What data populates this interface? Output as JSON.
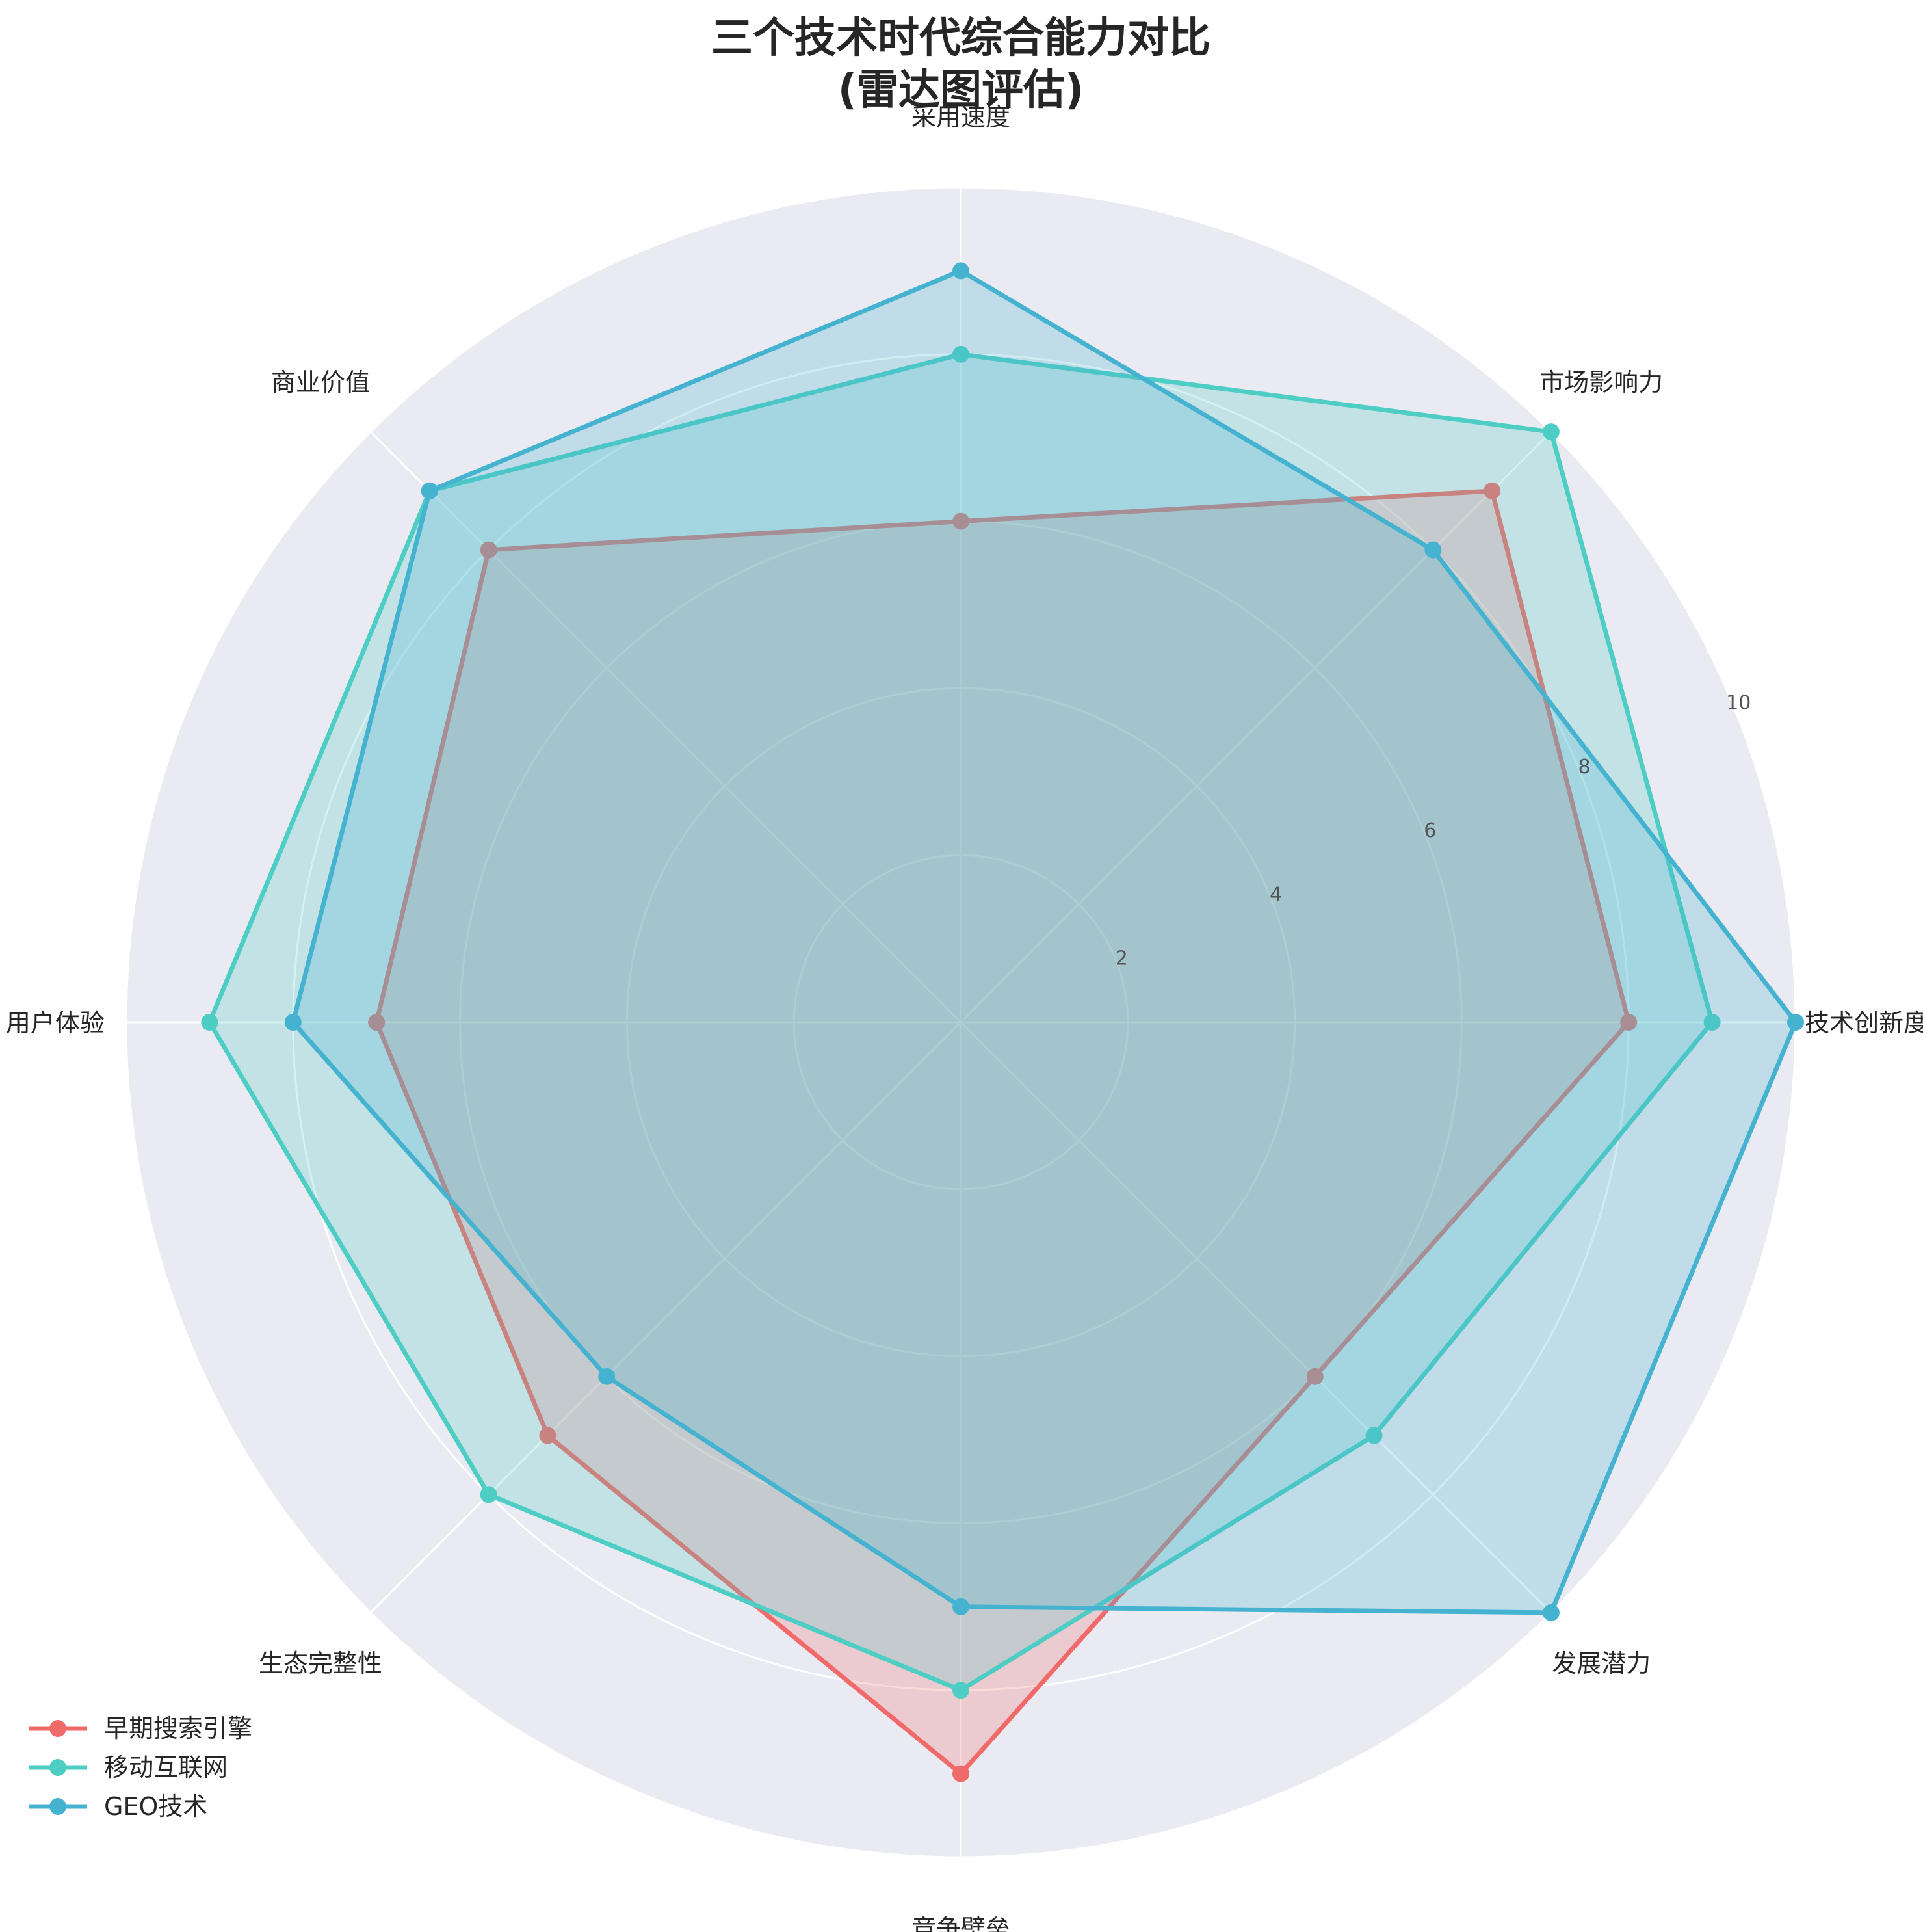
{
  "chart_data": {
    "type": "radar",
    "title_lines": [
      "三个技术时代综合能力对比",
      "(雷达图评估)"
    ],
    "axes": [
      "技术创新度",
      "市场影响力",
      "采用速度",
      "商业价值",
      "用户体验",
      "生态完整性",
      "竞争壁垒",
      "发展潜力"
    ],
    "rlim": [
      0,
      10
    ],
    "rticks": [
      2,
      4,
      6,
      8,
      10
    ],
    "grid": true,
    "legend_position": "lower-left",
    "series": [
      {
        "name": "早期搜索引擎",
        "color": "#F06A6A",
        "values": [
          8,
          9,
          6,
          8,
          7,
          7,
          9,
          6
        ]
      },
      {
        "name": "移动互联网",
        "color": "#4ECDC4",
        "values": [
          9,
          10,
          8,
          9,
          9,
          8,
          8,
          7
        ]
      },
      {
        "name": "GEO技术",
        "color": "#45B3D0",
        "values": [
          10,
          8,
          9,
          9,
          8,
          6,
          7,
          10
        ]
      }
    ]
  }
}
